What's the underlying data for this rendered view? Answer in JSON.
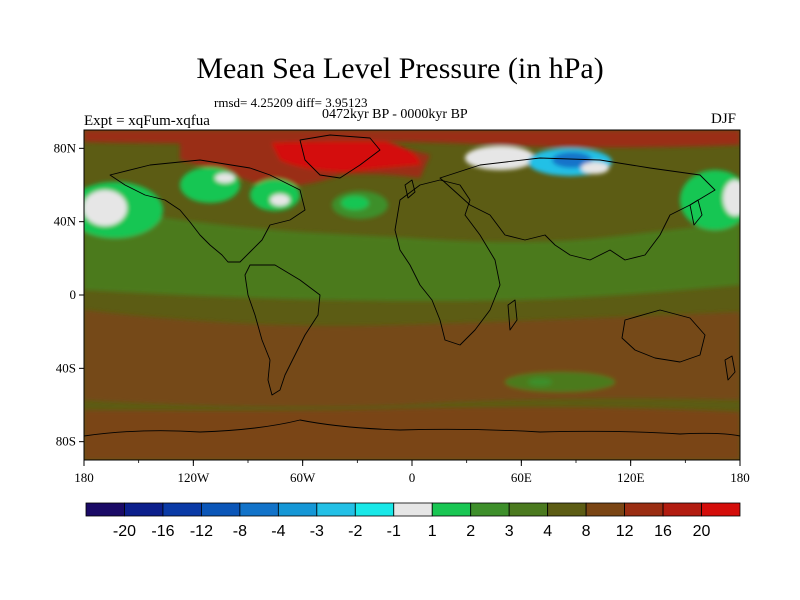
{
  "chart_data": {
    "type": "heatmap",
    "title": "Mean Sea Level Pressure (in hPa)",
    "stats_line": "rmsd= 4.25209  diff= 3.95123",
    "period_label": "0472kyr BP - 0000kyr BP",
    "experiment_label": "Expt = xqFum-xqfua",
    "season_label": "DJF",
    "x_ticks": [
      "180",
      "120W",
      "60W",
      "0",
      "60E",
      "120E",
      "180"
    ],
    "y_ticks": [
      "80N",
      "40N",
      "0",
      "40S",
      "80S"
    ],
    "colorbar": {
      "labels": [
        "-20",
        "-16",
        "-12",
        "-8",
        "-4",
        "-3",
        "-2",
        "-1",
        "1",
        "2",
        "3",
        "4",
        "8",
        "12",
        "16",
        "20"
      ],
      "colors": [
        "#1a0a66",
        "#0c1f8c",
        "#0a3aa6",
        "#0b56b8",
        "#1273c9",
        "#1597d6",
        "#23c0e6",
        "#19e8e8",
        "#e6e6e6",
        "#19c653",
        "#3e8f2b",
        "#4b7a1f",
        "#5c5c14",
        "#7a4514",
        "#9a2d12",
        "#b21c10",
        "#d40d0a"
      ]
    }
  }
}
